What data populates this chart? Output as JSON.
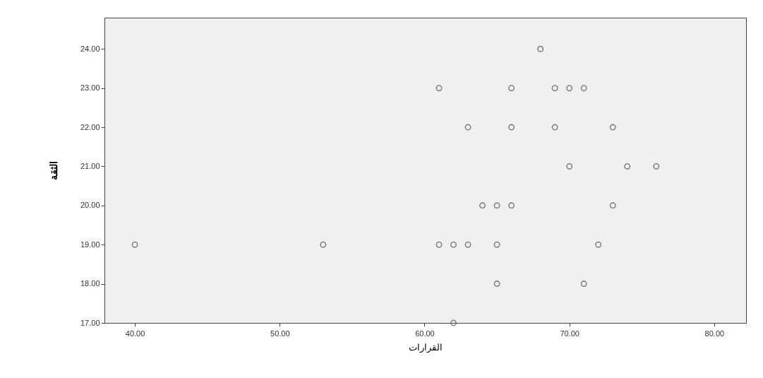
{
  "chart_data": {
    "type": "scatter",
    "xlabel": "القرارات",
    "ylabel": "الثقة",
    "series": [
      {
        "color": "#555555",
        "x": [
          68,
          61,
          66,
          69,
          70,
          71,
          63,
          66,
          69,
          73,
          70,
          74,
          76,
          64,
          65,
          66,
          73,
          40,
          53,
          61,
          62,
          63,
          65,
          72,
          65,
          71,
          62
        ],
        "values": [
          24,
          23,
          23,
          23,
          23,
          23,
          22,
          22,
          22,
          22,
          21,
          21,
          21,
          20,
          20,
          20,
          20,
          19,
          19,
          19,
          19,
          19,
          19,
          19,
          18,
          18,
          17
        ]
      }
    ],
    "xlim": [
      37.9,
      82.2
    ],
    "xticks": [
      {
        "value": 40,
        "label": "40.00"
      },
      {
        "value": 50,
        "label": "50.00"
      },
      {
        "value": 60,
        "label": "60.00"
      },
      {
        "value": 70,
        "label": "70.00"
      },
      {
        "value": 80,
        "label": "80.00"
      }
    ],
    "ylim": [
      17,
      24.8
    ],
    "yticks": [
      {
        "value": 17,
        "label": "17.00"
      },
      {
        "value": 18,
        "label": "18.00"
      },
      {
        "value": 19,
        "label": "19.00"
      },
      {
        "value": 20,
        "label": "20.00"
      },
      {
        "value": 21,
        "label": "21.00"
      },
      {
        "value": 22,
        "label": "22.00"
      },
      {
        "value": 23,
        "label": "23.00"
      },
      {
        "value": 24,
        "label": "24.00"
      }
    ],
    "marker": "circle",
    "grid": false
  }
}
